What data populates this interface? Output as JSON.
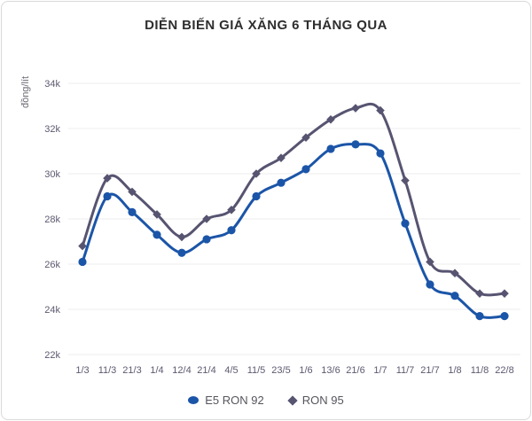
{
  "card": {
    "title": "DIỄN BIẾN GIÁ XĂNG 6 THÁNG QUA"
  },
  "colors": {
    "e5_ron_92": "#1b55a8",
    "ron_95": "#575471",
    "gridline": "#ececec",
    "tick_text": "#5d5970",
    "title_text": "#2e2e2e",
    "legend_text": "#56555d",
    "card_border": "#d9d9d9"
  },
  "chart_data": {
    "type": "line",
    "title": "DIỄN BIẾN GIÁ XĂNG 6 THÁNG QUA",
    "xlabel": "",
    "ylabel": "đồng/lít",
    "unit": "nghìn đồng/lít (k)",
    "categories": [
      "1/3",
      "11/3",
      "21/3",
      "1/4",
      "12/4",
      "21/4",
      "4/5",
      "11/5",
      "23/5",
      "1/6",
      "13/6",
      "21/6",
      "1/7",
      "11/7",
      "21/7",
      "1/8",
      "11/8",
      "22/8"
    ],
    "series": [
      {
        "name": "E5 RON 92",
        "marker": "circle",
        "color": "#1b55a8",
        "values": [
          26.1,
          29.0,
          28.3,
          27.3,
          26.5,
          27.1,
          27.5,
          29.0,
          29.6,
          30.2,
          31.1,
          31.3,
          30.9,
          27.8,
          25.1,
          24.6,
          23.7,
          23.7
        ]
      },
      {
        "name": "RON 95",
        "marker": "diamond",
        "color": "#575471",
        "values": [
          26.8,
          29.8,
          29.2,
          28.2,
          27.2,
          28.0,
          28.4,
          30.0,
          30.7,
          31.6,
          32.4,
          32.9,
          32.8,
          29.7,
          26.1,
          25.6,
          24.7,
          24.7
        ]
      }
    ],
    "ylim": [
      22,
      34
    ],
    "yticks": [
      22,
      24,
      26,
      28,
      30,
      32,
      34
    ],
    "ytick_suffix": "k",
    "grid": "horizontal",
    "legend_position": "bottom"
  }
}
